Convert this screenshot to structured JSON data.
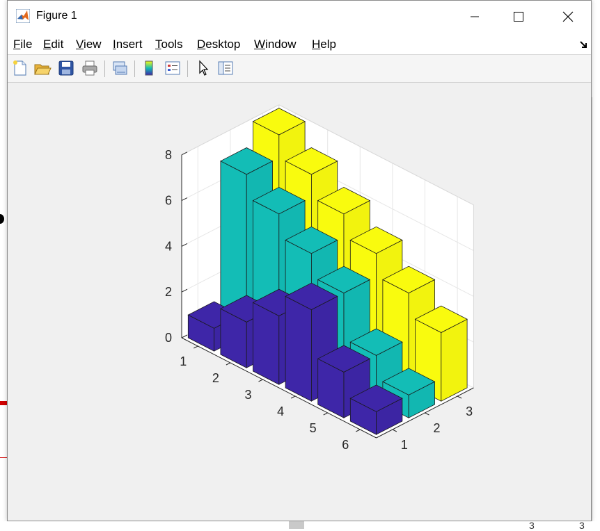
{
  "window": {
    "title": "Figure 1",
    "controls": {
      "minimize": "minimize",
      "maximize": "maximize",
      "close": "close"
    }
  },
  "menu": {
    "items": [
      "File",
      "Edit",
      "View",
      "Insert",
      "Tools",
      "Desktop",
      "Window",
      "Help"
    ]
  },
  "toolbar": {
    "buttons": [
      "new-figure-icon",
      "open-file-icon",
      "save-icon",
      "print-icon",
      "link-plot-icon",
      "insert-colorbar-icon",
      "insert-legend-icon",
      "edit-plot-icon",
      "property-editor-icon"
    ]
  },
  "colors": {
    "series1": "#3e26a8",
    "series2": "#13bdb6",
    "series3": "#f9fb0e",
    "axes_bg": "#ffffff",
    "figure_bg": "#f0f0f0"
  },
  "chart_data": {
    "type": "bar3",
    "title": "",
    "xlabel": "",
    "ylabel": "",
    "zlabel": "",
    "rows": [
      1,
      2,
      3,
      4,
      5,
      6
    ],
    "cols": [
      1,
      2,
      3
    ],
    "zlim": [
      0,
      8
    ],
    "zticks": [
      0,
      2,
      4,
      6,
      8
    ],
    "grid": true,
    "series": [
      {
        "values": [
          1,
          2,
          3,
          4,
          2,
          1
        ]
      },
      {
        "values": [
          7,
          6,
          5,
          4,
          2,
          1
        ]
      },
      {
        "values": [
          8,
          7,
          6,
          5,
          4,
          3
        ]
      }
    ]
  },
  "page_edge": {
    "bottom_numbers": [
      "3",
      "3"
    ]
  }
}
